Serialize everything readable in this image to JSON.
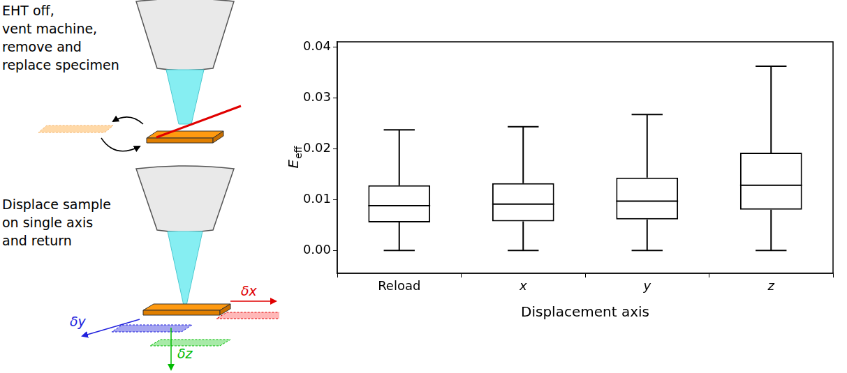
{
  "chart_data": {
    "type": "box",
    "x_label": "Displacement axis",
    "y_label": {
      "text": "E",
      "subscript": "eff"
    },
    "categories": [
      "Reload",
      "x",
      "y",
      "z"
    ],
    "stats": {
      "min": [
        0.0,
        0.0,
        0.0,
        0.0
      ],
      "q1": [
        0.0055,
        0.0057,
        0.0061,
        0.008
      ],
      "median": [
        0.0088,
        0.0091,
        0.0097,
        0.0128
      ],
      "q3": [
        0.0128,
        0.0132,
        0.0143,
        0.0192
      ],
      "max": [
        0.0237,
        0.0243,
        0.0267,
        0.0362
      ]
    },
    "color": "#000000",
    "ylim": [
      -0.0045,
      0.041
    ],
    "yticks": [
      {
        "value": 0,
        "label": "0.00"
      },
      {
        "value": 0.01,
        "label": "0.01"
      },
      {
        "value": 0.02,
        "label": "0.02"
      },
      {
        "value": 0.03,
        "label": "0.03"
      },
      {
        "value": 0.04,
        "label": "0.04"
      }
    ],
    "grid": false
  },
  "diagram": {
    "step1_text": [
      "EHT off,",
      "vent machine,",
      "remove and",
      "replace specimen"
    ],
    "step2_text": [
      "Displace sample",
      "on single axis",
      "and return"
    ],
    "displacement_labels": {
      "x": "δx",
      "y": "δy",
      "z": "δz"
    }
  }
}
